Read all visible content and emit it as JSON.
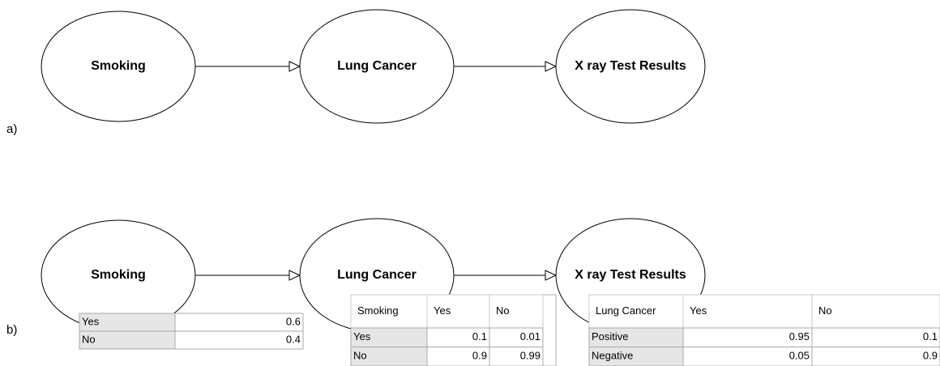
{
  "panels": [
    {
      "label": "a)",
      "nodes": [
        {
          "label": "Smoking"
        },
        {
          "label": "Lung Cancer"
        },
        {
          "label": "X ray Test Results"
        }
      ]
    },
    {
      "label": "b)",
      "nodes": [
        {
          "label": "Smoking"
        },
        {
          "label": "Lung Cancer"
        },
        {
          "label": "X ray Test Results"
        }
      ],
      "tables": [
        {
          "rows": [
            [
              "Yes",
              0.6
            ],
            [
              "No",
              0.4
            ]
          ]
        },
        {
          "header": [
            "Smoking",
            "Yes",
            "No"
          ],
          "rows": [
            [
              "Yes",
              0.1,
              0.01
            ],
            [
              "No",
              0.9,
              0.99
            ]
          ]
        },
        {
          "header": [
            "Lung Cancer",
            "Yes",
            "No"
          ],
          "rows": [
            [
              "Positive",
              0.95,
              0.1
            ],
            [
              "Negative",
              0.05,
              0.9
            ]
          ]
        }
      ]
    }
  ]
}
